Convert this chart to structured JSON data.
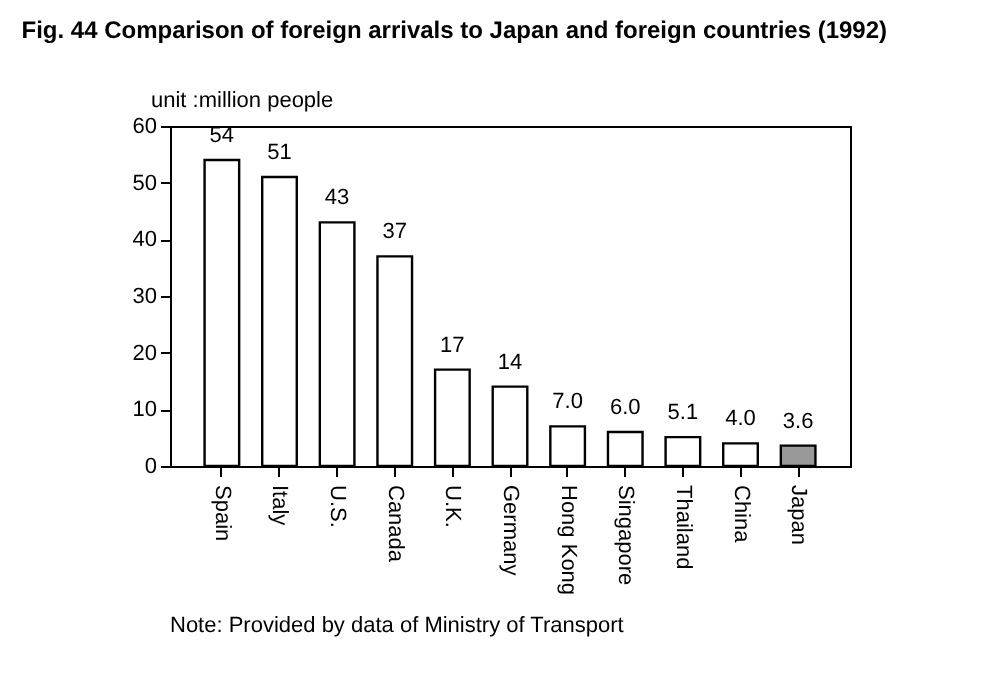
{
  "chart_data": {
    "type": "bar",
    "title": "Fig. 44 Comparison of foreign arrivals to Japan and foreign countries (1992)",
    "ylabel": "unit :million people",
    "categories": [
      "Spain",
      "Italy",
      "U.S.",
      "Canada",
      "U.K.",
      "Germany",
      "Hong Kong",
      "Singapore",
      "Thailand",
      "China",
      "Japan"
    ],
    "values": [
      54,
      51,
      43,
      37,
      17,
      14,
      7.0,
      6.0,
      5.1,
      4.0,
      3.6
    ],
    "value_labels": [
      "54",
      "51",
      "43",
      "37",
      "17",
      "14",
      "7.0",
      "6.0",
      "5.1",
      "4.0",
      "3.6"
    ],
    "colors": [
      "#ffffff",
      "#ffffff",
      "#ffffff",
      "#ffffff",
      "#ffffff",
      "#ffffff",
      "#ffffff",
      "#ffffff",
      "#ffffff",
      "#ffffff",
      "#999999"
    ],
    "ylim": [
      0,
      60
    ],
    "yticks": [
      0,
      10,
      20,
      30,
      40,
      50,
      60
    ],
    "grid": false,
    "annotations": [
      "Note: Provided by data of Ministry of Transport"
    ]
  }
}
